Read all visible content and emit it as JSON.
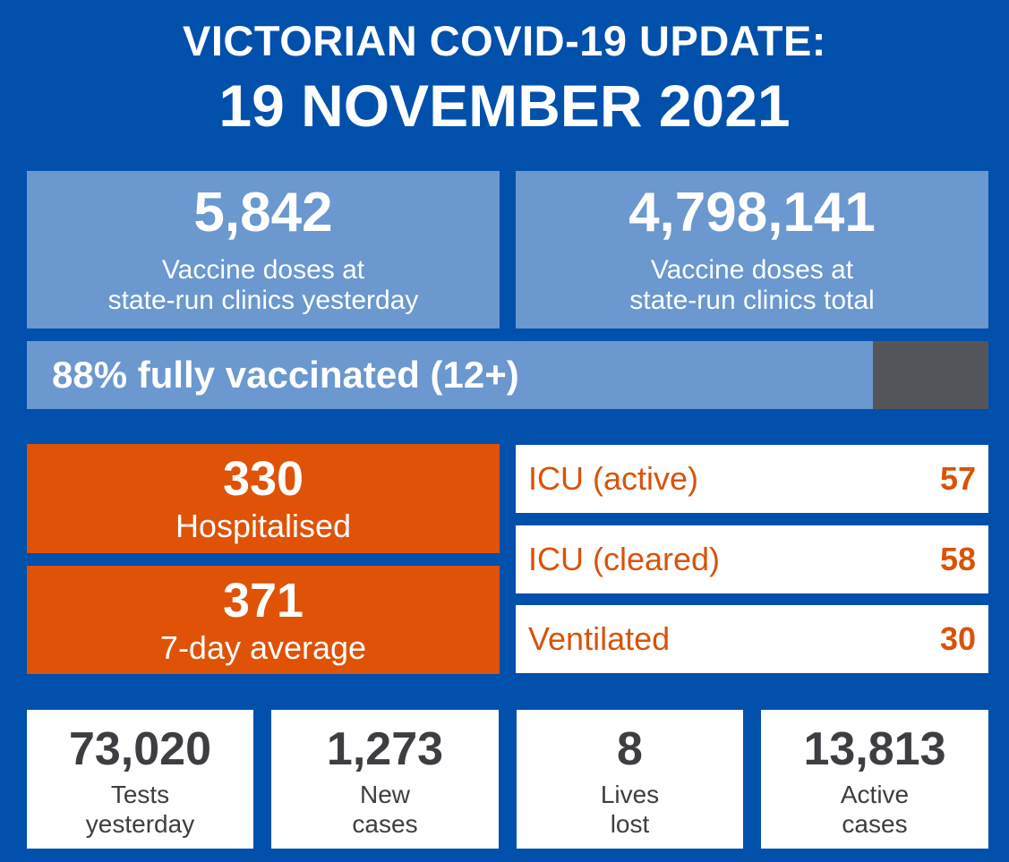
{
  "header": {
    "title": "VICTORIAN COVID-19 UPDATE:",
    "date": "19 NOVEMBER 2021"
  },
  "vaccine": {
    "yesterday": {
      "value": "5,842",
      "label_line1": "Vaccine doses at",
      "label_line2": "state-run clinics yesterday"
    },
    "total": {
      "value": "4,798,141",
      "label_line1": "Vaccine doses at",
      "label_line2": "state-run clinics total"
    }
  },
  "vaccination_progress": {
    "text": "88% fully vaccinated (12+)",
    "percent": 88
  },
  "hospital": {
    "hospitalised": {
      "value": "330",
      "label": "Hospitalised"
    },
    "seven_day": {
      "value": "371",
      "label": "7-day average"
    }
  },
  "icu": [
    {
      "label": "ICU (active)",
      "value": "57"
    },
    {
      "label": "ICU (cleared)",
      "value": "58"
    },
    {
      "label": "Ventilated",
      "value": "30"
    }
  ],
  "stats": [
    {
      "value": "73,020",
      "line1": "Tests",
      "line2": "yesterday"
    },
    {
      "value": "1,273",
      "line1": "New",
      "line2": "cases"
    },
    {
      "value": "8",
      "line1": "Lives",
      "line2": "lost"
    },
    {
      "value": "13,813",
      "line1": "Active",
      "line2": "cases"
    }
  ],
  "colors": {
    "background": "#0050ac",
    "vaccine_panel": "#6a98cf",
    "progress_remainder": "#55565b",
    "hospital_orange": "#e05206",
    "icu_text": "#d9530a",
    "stat_text": "#3d3e42"
  }
}
